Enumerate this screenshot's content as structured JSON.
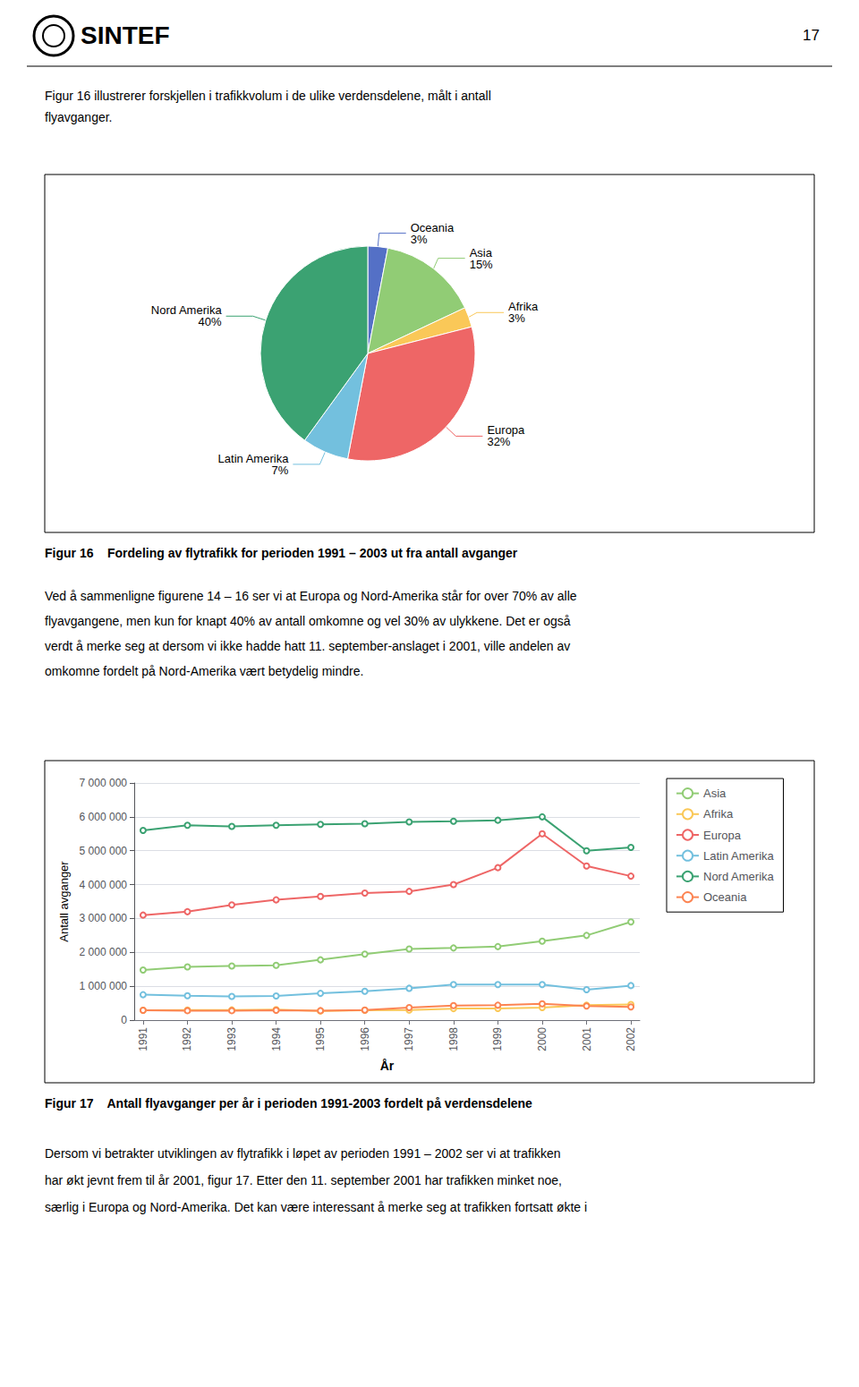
{
  "chart_data": [
    {
      "type": "pie",
      "title": "Figur 16    Fordeling av flytrafikk for perioden 1991 – 2003 ut fra antall avganger",
      "annotations": [
        "SINTEF",
        "17",
        "Figur 16 illustrerer forskjellen i trafikkvolum i de ulike verdensdelene, målt i antall",
        "flyavganger.",
        "Ved å sammenligne figurene 14 – 16 ser vi at Europa og Nord-Amerika står for over 70% av alle",
        "flyavgangene, men kun for knapt 40% av antall omkomne og vel 30% av ulykkene. Det er også",
        "verdt å merke seg at dersom vi ikke hadde hatt 11. september-anslaget i 2001, ville andelen av",
        "omkomne fordelt på Nord-Amerika vært betydelig mindre."
      ],
      "categories": [
        "Oceania",
        "Asia",
        "Afrika",
        "Europa",
        "Latin Amerika",
        "Nord Amerika"
      ],
      "values": [
        3,
        15,
        3,
        32,
        7,
        40
      ],
      "value_labels": [
        "3%",
        "15%",
        "3%",
        "32%",
        "7%",
        "40%"
      ],
      "data_labels": true
    },
    {
      "type": "line",
      "title": "Figur 17    Antall flyavganger per år i perioden 1991-2003 fordelt på verdensdelene",
      "annotations": [
        "Dersom vi betrakter utviklingen av flytrafikk i løpet av perioden 1991 – 2002 ser vi at trafikken",
        "har økt jevnt frem til år 2001, figur 17. Etter den 11. september 2001 har trafikken minket noe,",
        "særlig i Europa og Nord-Amerika. Det kan være interessant å merke seg at trafikken fortsatt økte i"
      ],
      "xlabel": "År",
      "ylabel": "Antall avganger",
      "x": [
        1991,
        1992,
        1993,
        1994,
        1995,
        1996,
        1997,
        1998,
        1999,
        2000,
        2001,
        2002
      ],
      "xlim": [
        1990.8,
        2002.2
      ],
      "xticks": [
        1991,
        1992,
        1993,
        1994,
        1995,
        1996,
        1997,
        1998,
        1999,
        2000,
        2001,
        2002
      ],
      "ylim": [
        0,
        7000000
      ],
      "yticks": [
        0,
        {
          "value": 1000000,
          "label": "1 000 000"
        },
        {
          "value": 2000000,
          "label": "2 000 000"
        },
        {
          "value": 3000000,
          "label": "3 000 000"
        },
        {
          "value": 4000000,
          "label": "4 000 000"
        },
        {
          "value": 5000000,
          "label": "5 000 000"
        },
        {
          "value": 6000000,
          "label": "6 000 000"
        },
        {
          "value": 7000000,
          "label": "7 000 000"
        }
      ],
      "grid": true,
      "legend": "right",
      "series": [
        {
          "name": "Asia",
          "values": [
            1480000,
            1570000,
            1600000,
            1620000,
            1780000,
            1950000,
            2100000,
            2130000,
            2170000,
            2330000,
            2500000,
            2900000
          ]
        },
        {
          "name": "Afrika",
          "values": [
            290000,
            295000,
            300000,
            310000,
            270000,
            290000,
            295000,
            340000,
            345000,
            370000,
            440000,
            460000
          ]
        },
        {
          "name": "Europa",
          "values": [
            3100000,
            3200000,
            3400000,
            3550000,
            3650000,
            3750000,
            3800000,
            4000000,
            4500000,
            5500000,
            4550000,
            4250000
          ]
        },
        {
          "name": "Latin Amerika",
          "values": [
            750000,
            720000,
            700000,
            715000,
            790000,
            850000,
            940000,
            1050000,
            1050000,
            1050000,
            900000,
            1020000
          ]
        },
        {
          "name": "Nord Amerika",
          "values": [
            5600000,
            5750000,
            5720000,
            5750000,
            5780000,
            5800000,
            5850000,
            5870000,
            5900000,
            6000000,
            5000000,
            5100000
          ]
        },
        {
          "name": "Oceania",
          "values": [
            290000,
            280000,
            280000,
            290000,
            280000,
            295000,
            370000,
            430000,
            440000,
            480000,
            415000,
            390000
          ]
        }
      ]
    }
  ]
}
